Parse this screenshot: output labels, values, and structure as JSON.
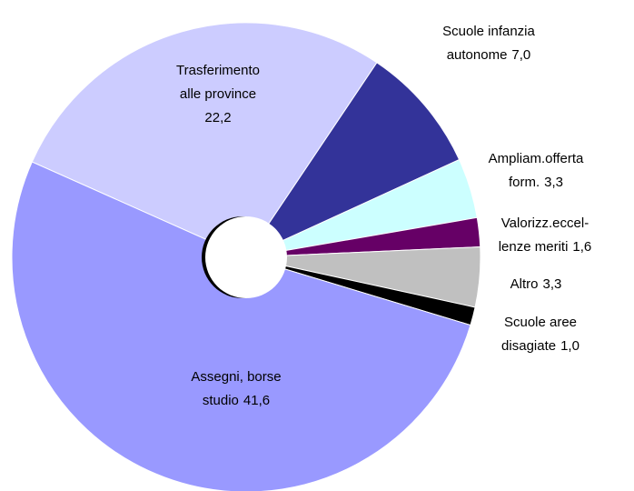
{
  "chart_data": {
    "type": "donut",
    "categories": [
      [
        "Trasferimento",
        "alle province"
      ],
      [
        "Scuole infanzia",
        "autonome"
      ],
      [
        "Ampliam.offerta",
        "form."
      ],
      [
        "Valorizz.eccel-",
        "lenze meriti"
      ],
      [
        "Altro"
      ],
      [
        "Scuole aree",
        "disagiate"
      ],
      [
        "Assegni, borse",
        "studio"
      ]
    ],
    "values": [
      22.2,
      7.0,
      3.3,
      1.6,
      3.3,
      1.0,
      41.6
    ],
    "value_labels": [
      "22,2",
      "7,0",
      "3,3",
      "1,6",
      "3,3",
      "1,0",
      "41,6"
    ],
    "colors": [
      "#ccccff",
      "#333399",
      "#ccffff",
      "#660066",
      "#c0c0c0",
      "#000000",
      "#9999ff"
    ]
  }
}
